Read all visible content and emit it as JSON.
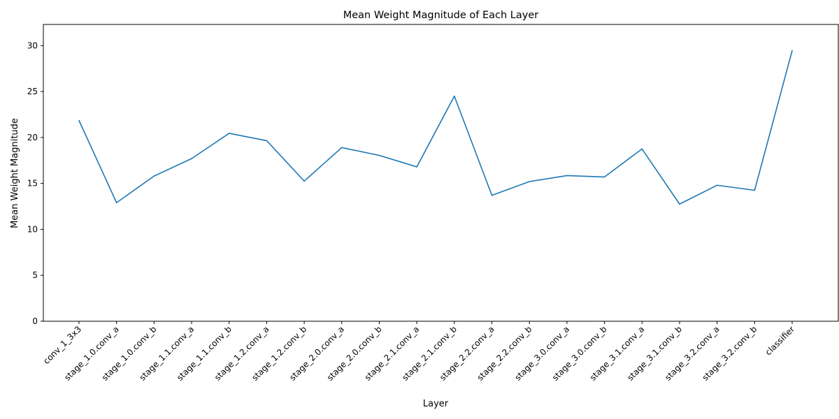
{
  "chart_data": {
    "type": "line",
    "title": "Mean Weight Magnitude of Each Layer",
    "xlabel": "Layer",
    "ylabel": "Mean Weight Magnitude",
    "ylim": [
      0,
      32.3
    ],
    "yticks": [
      0,
      5,
      10,
      15,
      20,
      25,
      30
    ],
    "grid": false,
    "series_color": "#1f77b4",
    "categories": [
      "conv_1_3x3",
      "stage_1.0.conv_a",
      "stage_1.0.conv_b",
      "stage_1.1.conv_a",
      "stage_1.1.conv_b",
      "stage_1.2.conv_a",
      "stage_1.2.conv_b",
      "stage_2.0.conv_a",
      "stage_2.0.conv_b",
      "stage_2.1.conv_a",
      "stage_2.1.conv_b",
      "stage_2.2.conv_a",
      "stage_2.2.conv_b",
      "stage_3.0.conv_a",
      "stage_3.0.conv_b",
      "stage_3.1.conv_a",
      "stage_3.1.conv_b",
      "stage_3.2.conv_a",
      "stage_3.2.conv_b",
      "classifier"
    ],
    "values": [
      21.85,
      12.9,
      15.8,
      17.7,
      20.45,
      19.65,
      15.25,
      18.9,
      18.05,
      16.8,
      24.5,
      13.7,
      15.2,
      15.85,
      15.7,
      18.75,
      12.75,
      14.8,
      14.25,
      29.45
    ]
  }
}
